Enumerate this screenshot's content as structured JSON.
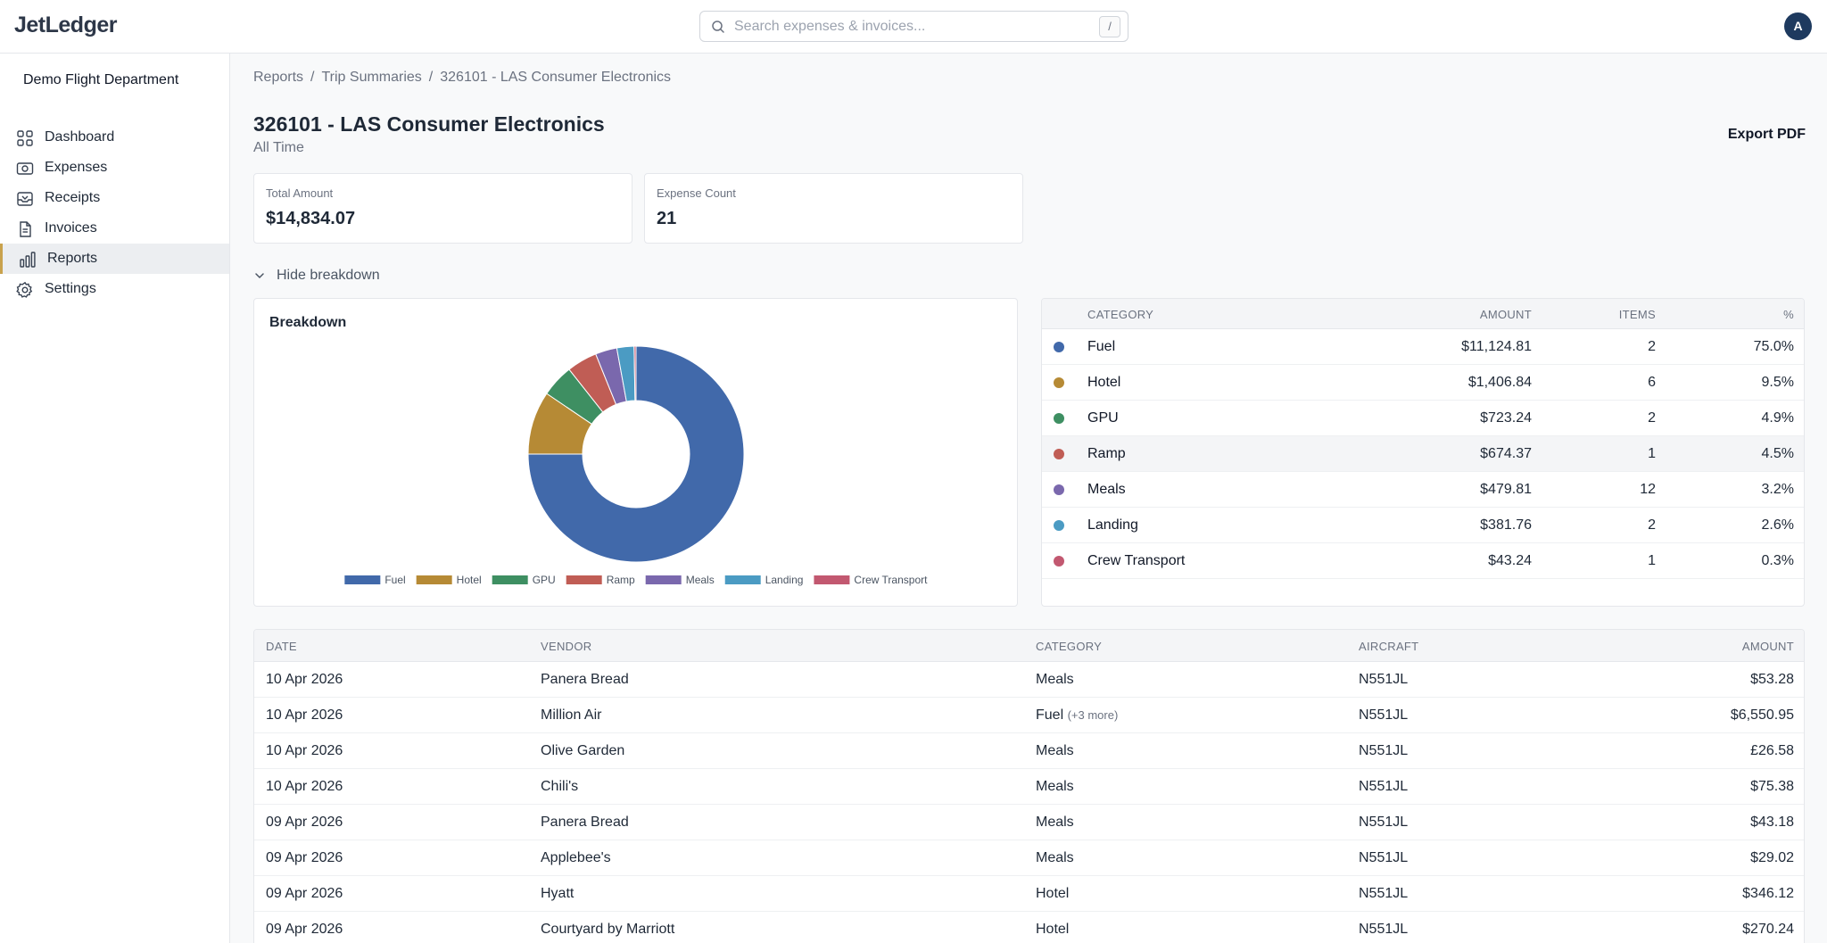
{
  "app": {
    "logo": "JetLedger",
    "user_initial": "A"
  },
  "search": {
    "placeholder": "Search expenses & invoices...",
    "shortcut": "/"
  },
  "sidebar": {
    "org": "Demo Flight Department",
    "items": [
      {
        "label": "Dashboard",
        "icon": "grid-icon"
      },
      {
        "label": "Expenses",
        "icon": "money-icon"
      },
      {
        "label": "Receipts",
        "icon": "inbox-icon"
      },
      {
        "label": "Invoices",
        "icon": "document-icon"
      },
      {
        "label": "Reports",
        "icon": "bar-chart-icon",
        "active": true
      },
      {
        "label": "Settings",
        "icon": "gear-icon"
      }
    ]
  },
  "breadcrumb": [
    "Reports",
    "Trip Summaries",
    "326101 - LAS Consumer Electronics"
  ],
  "page": {
    "title": "326101 - LAS Consumer Electronics",
    "subtitle": "All Time",
    "export_label": "Export PDF"
  },
  "stats": [
    {
      "label": "Total Amount",
      "value": "$14,834.07"
    },
    {
      "label": "Expense Count",
      "value": "21"
    }
  ],
  "toggle": {
    "label": "Hide breakdown"
  },
  "breakdown": {
    "title": "Breakdown",
    "headers": {
      "category": "CATEGORY",
      "amount": "AMOUNT",
      "items": "ITEMS",
      "pct": "%"
    },
    "rows": [
      {
        "name": "Fuel",
        "amount": "$11,124.81",
        "items": "2",
        "pct": "75.0%",
        "color": "#4169aa"
      },
      {
        "name": "Hotel",
        "amount": "$1,406.84",
        "items": "6",
        "pct": "9.5%",
        "color": "#b68a35"
      },
      {
        "name": "GPU",
        "amount": "$723.24",
        "items": "2",
        "pct": "4.9%",
        "color": "#3e8f62"
      },
      {
        "name": "Ramp",
        "amount": "$674.37",
        "items": "1",
        "pct": "4.5%",
        "color": "#c05d55"
      },
      {
        "name": "Meals",
        "amount": "$479.81",
        "items": "12",
        "pct": "3.2%",
        "color": "#7a68ad"
      },
      {
        "name": "Landing",
        "amount": "$381.76",
        "items": "2",
        "pct": "2.6%",
        "color": "#4b9bc3"
      },
      {
        "name": "Crew Transport",
        "amount": "$43.24",
        "items": "1",
        "pct": "0.3%",
        "color": "#c25870"
      }
    ]
  },
  "chart_data": {
    "type": "pie",
    "title": "Breakdown",
    "donut": true,
    "legend_position": "bottom",
    "categories": [
      "Fuel",
      "Hotel",
      "GPU",
      "Ramp",
      "Meals",
      "Landing",
      "Crew Transport"
    ],
    "values": [
      11124.81,
      1406.84,
      723.24,
      674.37,
      479.81,
      381.76,
      43.24
    ],
    "colors": [
      "#4169aa",
      "#b68a35",
      "#3e8f62",
      "#c05d55",
      "#7a68ad",
      "#4b9bc3",
      "#c25870"
    ]
  },
  "expenses": {
    "headers": {
      "date": "DATE",
      "vendor": "VENDOR",
      "category": "CATEGORY",
      "aircraft": "AIRCRAFT",
      "amount": "AMOUNT"
    },
    "rows": [
      {
        "date": "10 Apr 2026",
        "vendor": "Panera Bread",
        "category": "Meals",
        "more": "",
        "aircraft": "N551JL",
        "amount": "$53.28"
      },
      {
        "date": "10 Apr 2026",
        "vendor": "Million Air",
        "category": "Fuel",
        "more": "(+3 more)",
        "aircraft": "N551JL",
        "amount": "$6,550.95"
      },
      {
        "date": "10 Apr 2026",
        "vendor": "Olive Garden",
        "category": "Meals",
        "more": "",
        "aircraft": "N551JL",
        "amount": "£26.58"
      },
      {
        "date": "10 Apr 2026",
        "vendor": "Chili's",
        "category": "Meals",
        "more": "",
        "aircraft": "N551JL",
        "amount": "$75.38"
      },
      {
        "date": "09 Apr 2026",
        "vendor": "Panera Bread",
        "category": "Meals",
        "more": "",
        "aircraft": "N551JL",
        "amount": "$43.18"
      },
      {
        "date": "09 Apr 2026",
        "vendor": "Applebee's",
        "category": "Meals",
        "more": "",
        "aircraft": "N551JL",
        "amount": "$29.02"
      },
      {
        "date": "09 Apr 2026",
        "vendor": "Hyatt",
        "category": "Hotel",
        "more": "",
        "aircraft": "N551JL",
        "amount": "$346.12"
      },
      {
        "date": "09 Apr 2026",
        "vendor": "Courtyard by Marriott",
        "category": "Hotel",
        "more": "",
        "aircraft": "N551JL",
        "amount": "$270.24"
      }
    ]
  }
}
